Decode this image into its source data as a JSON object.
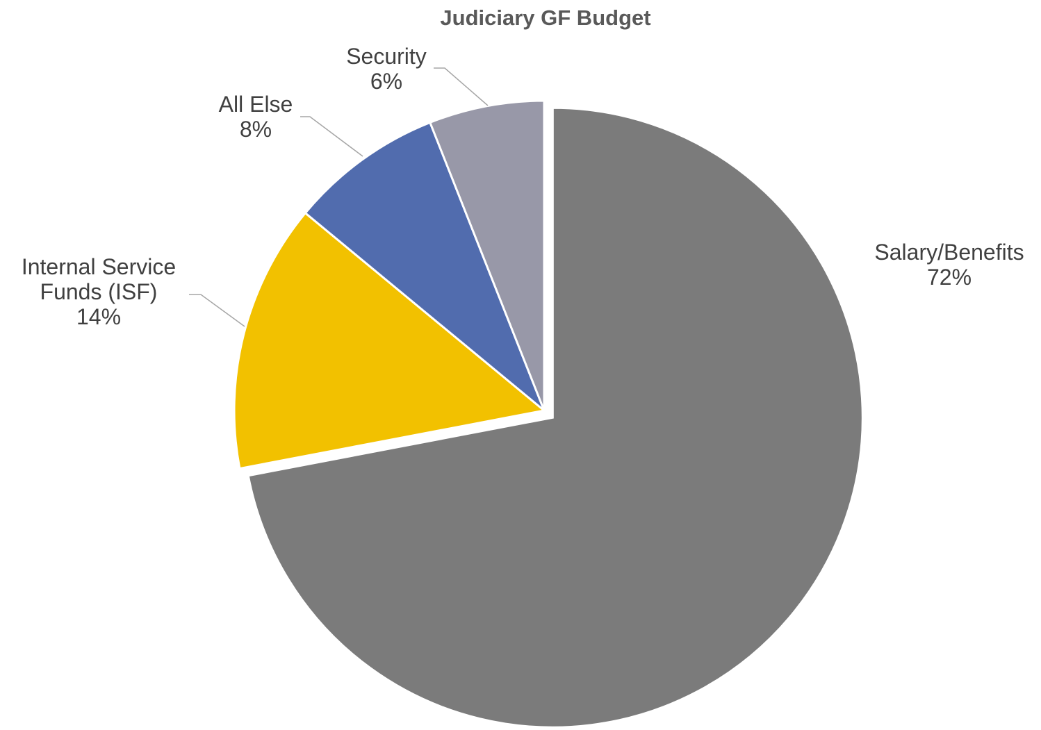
{
  "chart_data": {
    "type": "pie",
    "title": "Judiciary GF Budget",
    "slices": [
      {
        "name": "Salary/Benefits",
        "label_lines": [
          "Salary/Benefits"
        ],
        "value": 72,
        "percent_label": "72%",
        "color": "#7b7b7b",
        "exploded": true
      },
      {
        "name": "Internal Service Funds (ISF)",
        "label_lines": [
          "Internal Service",
          "Funds (ISF)"
        ],
        "value": 14,
        "percent_label": "14%",
        "color": "#f2c100",
        "exploded": false
      },
      {
        "name": "All Else",
        "label_lines": [
          "All Else"
        ],
        "value": 8,
        "percent_label": "8%",
        "color": "#516cae",
        "exploded": false
      },
      {
        "name": "Security",
        "label_lines": [
          "Security"
        ],
        "value": 6,
        "percent_label": "6%",
        "color": "#9898a8",
        "exploded": false
      }
    ],
    "start_angle": "12 o'clock",
    "direction": "clockwise",
    "legend": "none"
  }
}
